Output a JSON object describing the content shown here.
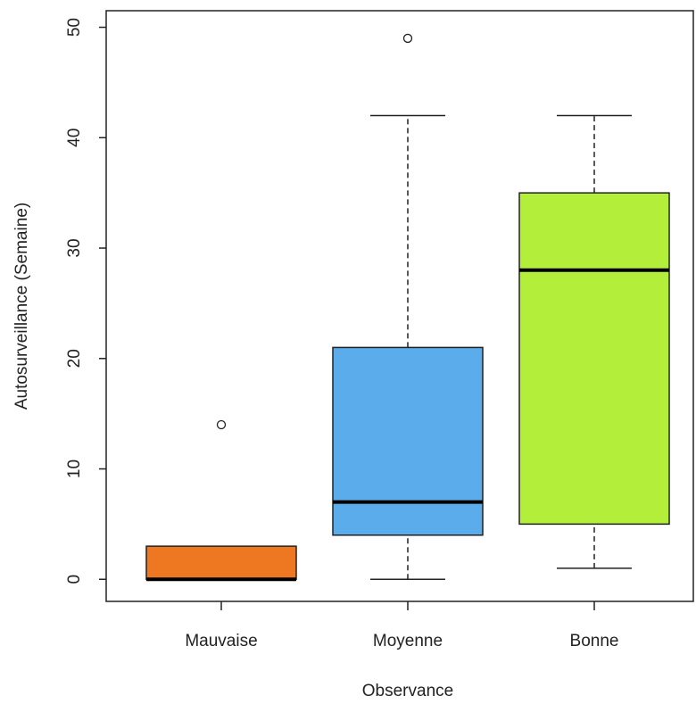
{
  "chart_data": {
    "type": "boxplot",
    "xlabel": "Observance",
    "ylabel": "Autosurveillance (Semaine)",
    "ylim": [
      -2,
      51.5
    ],
    "yticks": [
      0,
      10,
      20,
      30,
      40,
      50
    ],
    "ytick_labels": [
      "0",
      "10",
      "20",
      "30",
      "40",
      "50"
    ],
    "grid": false,
    "categories": [
      "Mauvaise",
      "Moyenne",
      "Bonne"
    ],
    "boxes": [
      {
        "category": "Mauvaise",
        "whisker_low": 0,
        "q1": 0,
        "median": 0,
        "q3": 3,
        "whisker_high": 3,
        "outliers": [
          14
        ],
        "color": "#EE7722"
      },
      {
        "category": "Moyenne",
        "whisker_low": 0,
        "q1": 4,
        "median": 7,
        "q3": 21,
        "whisker_high": 42,
        "outliers": [
          49
        ],
        "color": "#5AACEB"
      },
      {
        "category": "Bonne",
        "whisker_low": 1,
        "q1": 5,
        "median": 28,
        "q3": 35,
        "whisker_high": 42,
        "outliers": [],
        "color": "#B2EE3A"
      }
    ]
  }
}
